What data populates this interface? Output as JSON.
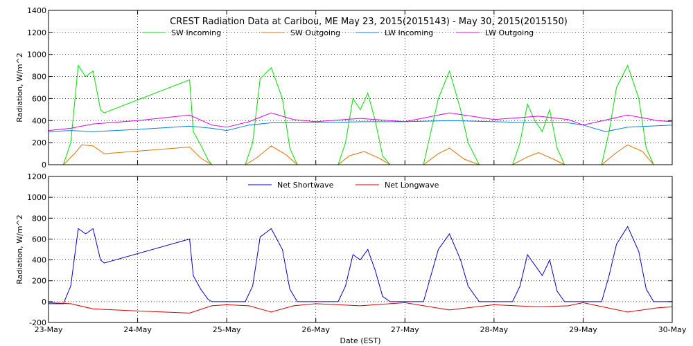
{
  "chart_data": [
    {
      "type": "line",
      "title": "CREST Radiation Data at Caribou, ME   May 23, 2015(2015143) - May 30, 2015(2015150)",
      "xlabel": "",
      "ylabel": "Radiation, W/m^2",
      "xlim": [
        "2015-05-23",
        "2015-05-30"
      ],
      "ylim": [
        0,
        1400
      ],
      "y_ticks": [
        0,
        200,
        400,
        600,
        800,
        1000,
        1200,
        1400
      ],
      "x_tick_labels": [
        "23-May",
        "24-May",
        "25-May",
        "26-May",
        "27-May",
        "28-May",
        "29-May",
        "30-May"
      ],
      "grid": "dotted",
      "legend_position": "top",
      "series": [
        {
          "name": "SW Incoming",
          "color": "#00dd00",
          "x": [
            "2015-05-23 00:00",
            "2015-05-23 04:00",
            "2015-05-23 06:00",
            "2015-05-23 08:00",
            "2015-05-23 10:00",
            "2015-05-23 12:00",
            "2015-05-23 14:00",
            "2015-05-23 15:00",
            "2015-05-24 14:00",
            "2015-05-24 15:00",
            "2015-05-24 17:00",
            "2015-05-24 19:00",
            "2015-05-24 20:00",
            "2015-05-25 05:00",
            "2015-05-25 07:00",
            "2015-05-25 09:00",
            "2015-05-25 12:00",
            "2015-05-25 15:00",
            "2015-05-25 17:00",
            "2015-05-25 19:00",
            "2015-05-26 06:00",
            "2015-05-26 08:00",
            "2015-05-26 10:00",
            "2015-05-26 12:00",
            "2015-05-26 14:00",
            "2015-05-26 16:00",
            "2015-05-26 18:00",
            "2015-05-26 20:00",
            "2015-05-27 05:00",
            "2015-05-27 07:00",
            "2015-05-27 09:00",
            "2015-05-27 12:00",
            "2015-05-27 15:00",
            "2015-05-27 17:00",
            "2015-05-27 20:00",
            "2015-05-28 05:00",
            "2015-05-28 07:00",
            "2015-05-28 09:00",
            "2015-05-28 11:00",
            "2015-05-28 13:00",
            "2015-05-28 15:00",
            "2015-05-28 17:00",
            "2015-05-28 19:00",
            "2015-05-29 05:00",
            "2015-05-29 07:00",
            "2015-05-29 09:00",
            "2015-05-29 12:00",
            "2015-05-29 15:00",
            "2015-05-29 17:00",
            "2015-05-29 19:00",
            "2015-05-30 00:00"
          ],
          "y": [
            0,
            0,
            200,
            900,
            800,
            850,
            500,
            470,
            770,
            300,
            180,
            40,
            0,
            0,
            200,
            780,
            880,
            600,
            150,
            0,
            0,
            200,
            600,
            500,
            650,
            400,
            80,
            0,
            0,
            300,
            600,
            850,
            500,
            200,
            0,
            0,
            200,
            550,
            400,
            300,
            500,
            150,
            0,
            0,
            300,
            700,
            900,
            600,
            150,
            0,
            0
          ]
        },
        {
          "name": "SW Outgoing",
          "color": "#e07000",
          "x": [
            "2015-05-23 00:00",
            "2015-05-23 04:00",
            "2015-05-23 07:00",
            "2015-05-23 09:00",
            "2015-05-23 12:00",
            "2015-05-23 15:00",
            "2015-05-24 14:00",
            "2015-05-24 17:00",
            "2015-05-24 20:00",
            "2015-05-25 05:00",
            "2015-05-25 08:00",
            "2015-05-25 12:00",
            "2015-05-25 16:00",
            "2015-05-25 19:00",
            "2015-05-26 06:00",
            "2015-05-26 09:00",
            "2015-05-26 13:00",
            "2015-05-26 17:00",
            "2015-05-26 20:00",
            "2015-05-27 05:00",
            "2015-05-27 09:00",
            "2015-05-27 12:00",
            "2015-05-27 16:00",
            "2015-05-27 20:00",
            "2015-05-28 05:00",
            "2015-05-28 09:00",
            "2015-05-28 12:00",
            "2015-05-28 16:00",
            "2015-05-28 19:00",
            "2015-05-29 05:00",
            "2015-05-29 09:00",
            "2015-05-29 12:00",
            "2015-05-29 16:00",
            "2015-05-29 19:00",
            "2015-05-30 00:00"
          ],
          "y": [
            0,
            0,
            100,
            180,
            170,
            100,
            160,
            60,
            0,
            0,
            60,
            170,
            90,
            0,
            0,
            80,
            120,
            60,
            0,
            0,
            100,
            150,
            50,
            0,
            0,
            70,
            110,
            50,
            0,
            0,
            110,
            180,
            120,
            0,
            0
          ]
        },
        {
          "name": "LW Incoming",
          "color": "#0080e0",
          "x": [
            "2015-05-23 00:00",
            "2015-05-23 06:00",
            "2015-05-23 12:00",
            "2015-05-24 00:00",
            "2015-05-24 14:00",
            "2015-05-24 20:00",
            "2015-05-25 00:00",
            "2015-05-25 06:00",
            "2015-05-25 12:00",
            "2015-05-26 00:00",
            "2015-05-26 12:00",
            "2015-05-27 00:00",
            "2015-05-27 12:00",
            "2015-05-28 00:00",
            "2015-05-28 12:00",
            "2015-05-28 20:00",
            "2015-05-29 00:00",
            "2015-05-29 06:00",
            "2015-05-29 12:00",
            "2015-05-30 00:00"
          ],
          "y": [
            300,
            310,
            300,
            320,
            350,
            330,
            310,
            360,
            380,
            380,
            390,
            390,
            400,
            390,
            380,
            380,
            360,
            300,
            340,
            360
          ]
        },
        {
          "name": "LW Outgoing",
          "color": "#e000e0",
          "x": [
            "2015-05-23 00:00",
            "2015-05-23 06:00",
            "2015-05-23 12:00",
            "2015-05-24 00:00",
            "2015-05-24 14:00",
            "2015-05-24 20:00",
            "2015-05-25 00:00",
            "2015-05-25 06:00",
            "2015-05-25 12:00",
            "2015-05-25 18:00",
            "2015-05-26 00:00",
            "2015-05-26 12:00",
            "2015-05-27 00:00",
            "2015-05-27 12:00",
            "2015-05-28 00:00",
            "2015-05-28 12:00",
            "2015-05-28 20:00",
            "2015-05-29 00:00",
            "2015-05-29 12:00",
            "2015-05-29 20:00",
            "2015-05-30 00:00"
          ],
          "y": [
            310,
            330,
            370,
            400,
            450,
            360,
            340,
            390,
            470,
            410,
            390,
            420,
            390,
            470,
            410,
            440,
            410,
            360,
            450,
            400,
            390
          ]
        }
      ]
    },
    {
      "type": "line",
      "title": "",
      "xlabel": "Date (EST)",
      "ylabel": "Radiation, W/m^2",
      "xlim": [
        "2015-05-23",
        "2015-05-30"
      ],
      "ylim": [
        -200,
        1200
      ],
      "y_ticks": [
        -200,
        0,
        200,
        400,
        600,
        800,
        1000,
        1200
      ],
      "x_tick_labels": [
        "23-May",
        "24-May",
        "25-May",
        "26-May",
        "27-May",
        "28-May",
        "29-May",
        "30-May"
      ],
      "grid": "dotted",
      "legend_position": "top",
      "series": [
        {
          "name": "Net Shortwave",
          "color": "#0000c0",
          "x": [
            "2015-05-23 00:00",
            "2015-05-23 04:00",
            "2015-05-23 06:00",
            "2015-05-23 08:00",
            "2015-05-23 10:00",
            "2015-05-23 12:00",
            "2015-05-23 14:00",
            "2015-05-23 15:00",
            "2015-05-24 14:00",
            "2015-05-24 15:00",
            "2015-05-24 17:00",
            "2015-05-24 19:00",
            "2015-05-24 20:00",
            "2015-05-25 05:00",
            "2015-05-25 07:00",
            "2015-05-25 09:00",
            "2015-05-25 12:00",
            "2015-05-25 15:00",
            "2015-05-25 17:00",
            "2015-05-25 19:00",
            "2015-05-26 06:00",
            "2015-05-26 08:00",
            "2015-05-26 10:00",
            "2015-05-26 12:00",
            "2015-05-26 14:00",
            "2015-05-26 16:00",
            "2015-05-26 18:00",
            "2015-05-26 20:00",
            "2015-05-27 05:00",
            "2015-05-27 07:00",
            "2015-05-27 09:00",
            "2015-05-27 12:00",
            "2015-05-27 15:00",
            "2015-05-27 17:00",
            "2015-05-27 20:00",
            "2015-05-28 05:00",
            "2015-05-28 07:00",
            "2015-05-28 09:00",
            "2015-05-28 11:00",
            "2015-05-28 13:00",
            "2015-05-28 15:00",
            "2015-05-28 17:00",
            "2015-05-28 19:00",
            "2015-05-29 05:00",
            "2015-05-29 07:00",
            "2015-05-29 09:00",
            "2015-05-29 12:00",
            "2015-05-29 15:00",
            "2015-05-29 17:00",
            "2015-05-29 19:00",
            "2015-05-30 00:00"
          ],
          "y": [
            -20,
            -20,
            150,
            700,
            650,
            700,
            400,
            370,
            600,
            250,
            120,
            20,
            0,
            0,
            150,
            620,
            700,
            500,
            120,
            0,
            0,
            150,
            450,
            400,
            500,
            300,
            50,
            0,
            0,
            250,
            500,
            650,
            400,
            150,
            0,
            0,
            150,
            450,
            350,
            250,
            400,
            100,
            0,
            0,
            250,
            550,
            720,
            480,
            120,
            0,
            0
          ]
        },
        {
          "name": "Net Longwave",
          "color": "#d00000",
          "x": [
            "2015-05-23 00:00",
            "2015-05-23 06:00",
            "2015-05-23 12:00",
            "2015-05-24 00:00",
            "2015-05-24 14:00",
            "2015-05-24 20:00",
            "2015-05-25 00:00",
            "2015-05-25 06:00",
            "2015-05-25 12:00",
            "2015-05-25 18:00",
            "2015-05-26 00:00",
            "2015-05-26 12:00",
            "2015-05-27 00:00",
            "2015-05-27 12:00",
            "2015-05-28 00:00",
            "2015-05-28 12:00",
            "2015-05-28 20:00",
            "2015-05-29 00:00",
            "2015-05-29 12:00",
            "2015-05-29 20:00",
            "2015-05-30 00:00"
          ],
          "y": [
            -10,
            -20,
            -70,
            -90,
            -110,
            -40,
            -30,
            -40,
            -100,
            -40,
            -20,
            -40,
            -10,
            -80,
            -30,
            -50,
            -40,
            -10,
            -100,
            -60,
            -50
          ]
        }
      ]
    }
  ]
}
